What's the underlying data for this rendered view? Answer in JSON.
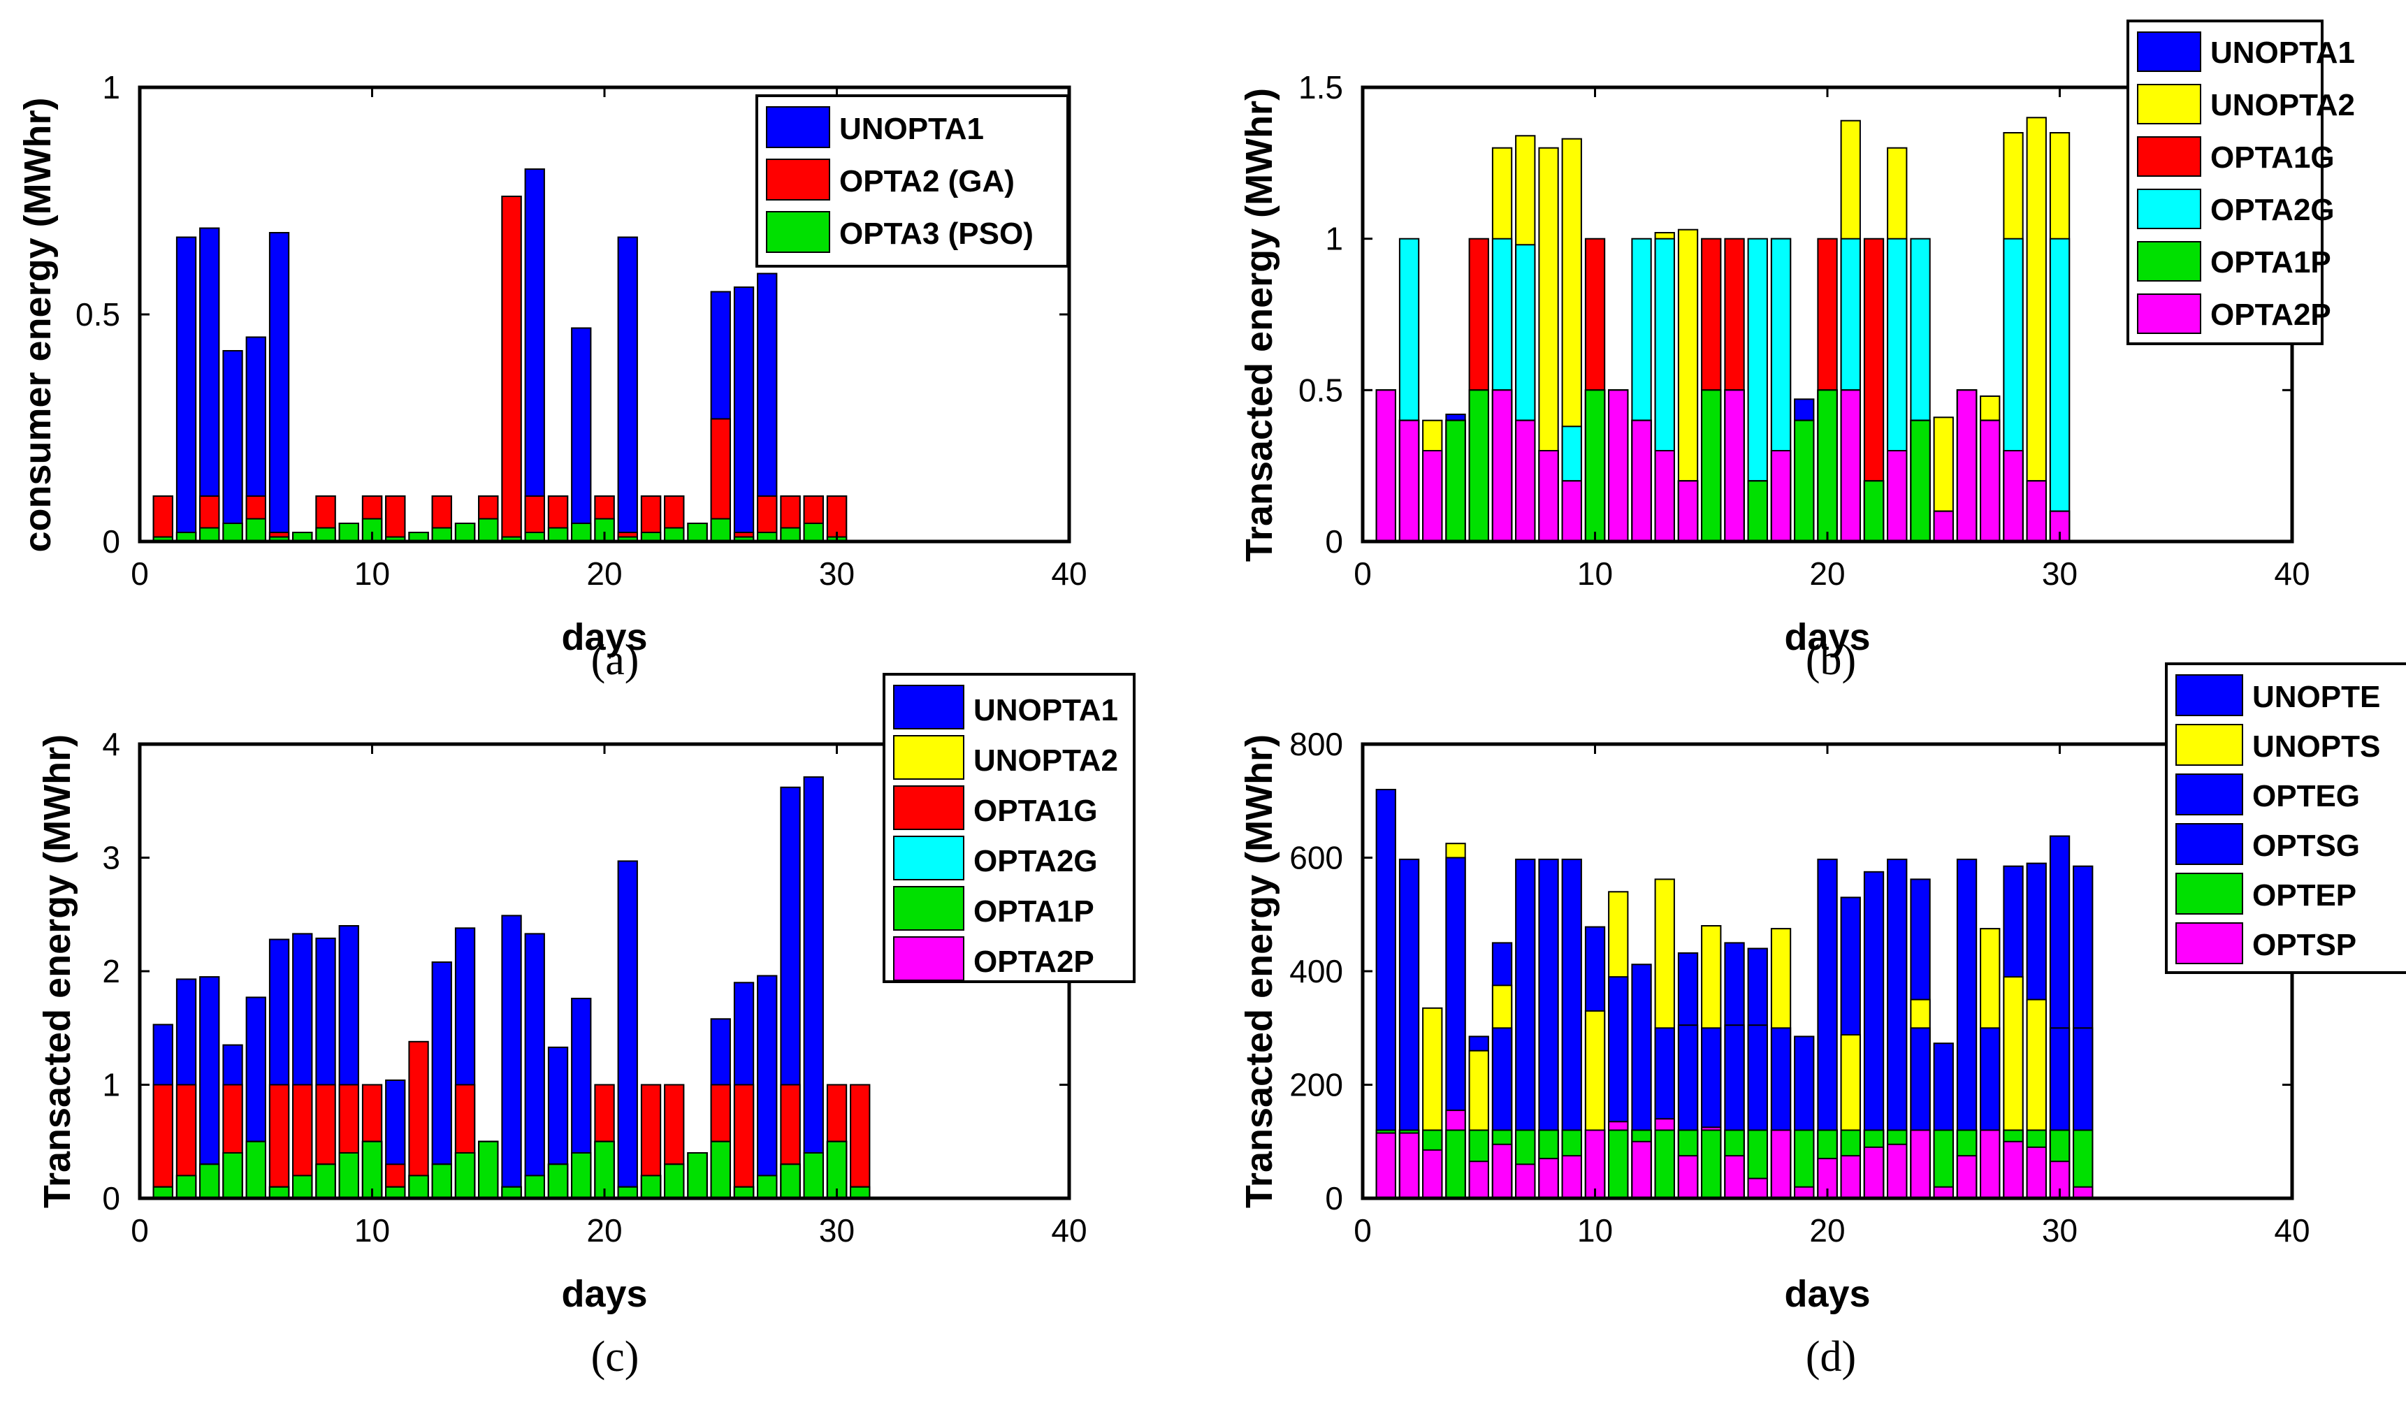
{
  "chart_data": [
    {
      "type": "bar",
      "panel_label": "(a)",
      "title": "",
      "xlabel": "days",
      "ylabel": "consumer energy (MWhr)",
      "xlim": [
        0,
        40
      ],
      "ylim": [
        0,
        1
      ],
      "xticks": [
        "0",
        "10",
        "20",
        "30",
        "40"
      ],
      "yticks": [
        "0",
        "0.5",
        "1"
      ],
      "ytick_values": [
        0,
        0.5,
        1
      ],
      "bar_mode": "overlay",
      "legend_position": "top-right",
      "x": [
        1,
        2,
        3,
        4,
        5,
        6,
        7,
        8,
        9,
        10,
        11,
        12,
        13,
        14,
        15,
        16,
        17,
        18,
        19,
        20,
        21,
        22,
        23,
        24,
        25,
        26,
        27,
        28,
        29,
        30
      ],
      "series": [
        {
          "name": "UNOPTA1",
          "color": "#0000ff",
          "values": [
            0.1,
            0.67,
            0.69,
            0.42,
            0.45,
            0.68,
            0.02,
            0.1,
            0.04,
            0.1,
            0.1,
            0.02,
            0.1,
            0.04,
            0.1,
            0.76,
            0.82,
            0.1,
            0.47,
            0.1,
            0.67,
            0.1,
            0.1,
            0.04,
            0.55,
            0.56,
            0.59,
            0.1,
            0.1,
            0.1
          ]
        },
        {
          "name": "OPTA2 (GA)",
          "color": "#ff0000",
          "values": [
            0.1,
            0.02,
            0.1,
            0.04,
            0.1,
            0.02,
            0.02,
            0.1,
            0.04,
            0.1,
            0.1,
            0.02,
            0.1,
            0.04,
            0.1,
            0.76,
            0.1,
            0.1,
            0.04,
            0.1,
            0.02,
            0.1,
            0.1,
            0.04,
            0.27,
            0.02,
            0.1,
            0.1,
            0.1,
            0.1
          ]
        },
        {
          "name": "OPTA3 (PSO)",
          "color": "#00e000",
          "values": [
            0.01,
            0.02,
            0.03,
            0.04,
            0.05,
            0.01,
            0.02,
            0.03,
            0.04,
            0.05,
            0.01,
            0.02,
            0.03,
            0.04,
            0.05,
            0.01,
            0.02,
            0.03,
            0.04,
            0.05,
            0.01,
            0.02,
            0.03,
            0.04,
            0.05,
            0.01,
            0.02,
            0.03,
            0.04,
            0.01
          ]
        }
      ]
    },
    {
      "type": "bar",
      "panel_label": "(b)",
      "title": "",
      "xlabel": "days",
      "ylabel": "Transacted energy (MWhr)",
      "xlim": [
        0,
        40
      ],
      "ylim": [
        0,
        1.5
      ],
      "xticks": [
        "0",
        "10",
        "20",
        "30",
        "40"
      ],
      "yticks": [
        "0",
        "0.5",
        "1",
        "1.5"
      ],
      "ytick_values": [
        0,
        0.5,
        1,
        1.5
      ],
      "bar_mode": "overlay",
      "legend_position": "top-right",
      "x": [
        1,
        2,
        3,
        4,
        5,
        6,
        7,
        8,
        9,
        10,
        11,
        12,
        13,
        14,
        15,
        16,
        17,
        18,
        19,
        20,
        21,
        22,
        23,
        24,
        25,
        26,
        27,
        28,
        29,
        30
      ],
      "series": [
        {
          "name": "UNOPTA1",
          "color": "#0000ff",
          "values": [
            0.5,
            0.4,
            0.3,
            0.42,
            0.5,
            0.5,
            0.4,
            0.3,
            0.2,
            0.5,
            0.5,
            0.4,
            0.3,
            0.2,
            0.5,
            0.5,
            0.2,
            0.3,
            0.47,
            0.5,
            0.5,
            0.2,
            0.3,
            0.4,
            0.1,
            0.5,
            0.4,
            0.3,
            0.2,
            0.1
          ]
        },
        {
          "name": "UNOPTA2",
          "color": "#ffff00",
          "values": [
            0.5,
            0.4,
            0.4,
            0.4,
            0.5,
            1.3,
            1.34,
            1.3,
            1.33,
            0.5,
            0.5,
            0.4,
            1.02,
            1.03,
            0.5,
            0.5,
            0.2,
            0.3,
            0.4,
            0.5,
            1.39,
            0.2,
            1.3,
            0.4,
            0.41,
            0.5,
            0.48,
            1.35,
            1.4,
            1.35
          ]
        },
        {
          "name": "OPTA1G",
          "color": "#ff0000",
          "values": [
            0.5,
            0.4,
            0.3,
            0.4,
            1.0,
            0.5,
            0.4,
            0.3,
            0.2,
            1.0,
            0.5,
            0.4,
            0.3,
            0.2,
            1.0,
            1.0,
            0.2,
            1.0,
            0.4,
            1.0,
            0.5,
            1.0,
            0.3,
            0.4,
            0.1,
            0.5,
            0.4,
            0.3,
            0.2,
            0.1
          ]
        },
        {
          "name": "OPTA2G",
          "color": "#00ffff",
          "values": [
            0.5,
            1.0,
            0.3,
            0.4,
            0.5,
            1.0,
            0.98,
            0.3,
            0.38,
            0.5,
            0.5,
            1.0,
            1.0,
            0.2,
            0.5,
            0.5,
            1.0,
            1.0,
            0.4,
            0.5,
            1.0,
            0.2,
            1.0,
            1.0,
            0.1,
            0.5,
            0.4,
            1.0,
            0.2,
            1.0
          ]
        },
        {
          "name": "OPTA1P",
          "color": "#00e000",
          "values": [
            0.5,
            0.4,
            0.3,
            0.4,
            0.5,
            0.5,
            0.4,
            0.3,
            0.2,
            0.5,
            0.5,
            0.4,
            0.3,
            0.2,
            0.5,
            0.5,
            0.2,
            0.3,
            0.4,
            0.5,
            0.5,
            0.2,
            0.3,
            0.4,
            0.1,
            0.5,
            0.4,
            0.3,
            0.2,
            0.1
          ]
        },
        {
          "name": "OPTA2P",
          "color": "#ff00ff",
          "values": [
            0.5,
            0.4,
            0.3,
            0.0,
            0.0,
            0.5,
            0.4,
            0.3,
            0.2,
            0.0,
            0.5,
            0.4,
            0.3,
            0.2,
            0.0,
            0.5,
            0.0,
            0.3,
            0.0,
            0.0,
            0.5,
            0.0,
            0.3,
            0.0,
            0.1,
            0.5,
            0.4,
            0.3,
            0.2,
            0.1
          ]
        }
      ]
    },
    {
      "type": "bar",
      "panel_label": "(c)",
      "title": "",
      "xlabel": "days",
      "ylabel": "Transacted energy (MWhr)",
      "xlim": [
        0,
        40
      ],
      "ylim": [
        0,
        4
      ],
      "xticks": [
        "0",
        "10",
        "20",
        "30",
        "40"
      ],
      "yticks": [
        "0",
        "1",
        "2",
        "3",
        "4"
      ],
      "ytick_values": [
        0,
        1,
        2,
        3,
        4
      ],
      "bar_mode": "overlay",
      "legend_position": "top-right",
      "x": [
        1,
        2,
        3,
        4,
        5,
        6,
        7,
        8,
        9,
        10,
        11,
        12,
        13,
        14,
        15,
        16,
        17,
        18,
        19,
        20,
        21,
        22,
        23,
        24,
        25,
        26,
        27,
        28,
        29,
        30,
        31
      ],
      "series": [
        {
          "name": "UNOPTA1",
          "color": "#0000ff",
          "values": [
            1.53,
            1.93,
            1.95,
            1.35,
            1.77,
            2.28,
            2.33,
            2.29,
            2.4,
            0.5,
            1.04,
            0.2,
            2.08,
            2.38,
            0.5,
            2.49,
            2.33,
            1.33,
            1.76,
            0.5,
            2.97,
            0.2,
            0.3,
            0.4,
            1.58,
            1.9,
            1.96,
            3.62,
            3.71,
            0.5,
            0.1
          ]
        },
        {
          "name": "UNOPTA2",
          "color": "#ffff00",
          "values": [
            0.1,
            0.2,
            0.3,
            0.4,
            0.5,
            0.1,
            0.2,
            0.3,
            0.4,
            0.5,
            0.1,
            0.2,
            0.3,
            0.4,
            0.5,
            0.1,
            0.2,
            0.3,
            0.4,
            0.5,
            0.1,
            0.2,
            0.3,
            0.4,
            0.5,
            0.1,
            0.2,
            0.3,
            0.4,
            0.5,
            0.1
          ]
        },
        {
          "name": "OPTA1G",
          "color": "#ff0000",
          "values": [
            1.0,
            1.0,
            0.3,
            1.0,
            0.5,
            1.0,
            1.0,
            1.0,
            1.0,
            1.0,
            0.3,
            1.38,
            0.3,
            1.0,
            0.5,
            0.1,
            0.2,
            0.3,
            0.4,
            1.0,
            0.1,
            1.0,
            1.0,
            0.4,
            1.0,
            1.0,
            0.2,
            1.0,
            0.4,
            1.0,
            1.0
          ]
        },
        {
          "name": "OPTA2G",
          "color": "#00ffff",
          "values": [
            0.1,
            0.2,
            0.3,
            0.4,
            0.5,
            0.1,
            0.2,
            0.3,
            0.4,
            0.5,
            0.1,
            0.2,
            0.3,
            0.4,
            0.5,
            0.1,
            0.2,
            0.3,
            0.4,
            0.5,
            0.1,
            0.2,
            0.3,
            0.4,
            0.5,
            0.1,
            0.2,
            0.3,
            0.4,
            0.5,
            0.1
          ]
        },
        {
          "name": "OPTA1P",
          "color": "#00e000",
          "values": [
            0.1,
            0.2,
            0.3,
            0.4,
            0.5,
            0.1,
            0.2,
            0.3,
            0.4,
            0.5,
            0.1,
            0.2,
            0.3,
            0.4,
            0.5,
            0.1,
            0.2,
            0.3,
            0.4,
            0.5,
            0.1,
            0.2,
            0.3,
            0.4,
            0.5,
            0.1,
            0.2,
            0.3,
            0.4,
            0.5,
            0.1
          ]
        },
        {
          "name": "OPTA2P",
          "color": "#ff00ff",
          "values": [
            0,
            0,
            0,
            0,
            0,
            0,
            0,
            0,
            0,
            0,
            0,
            0,
            0,
            0,
            0,
            0,
            0,
            0,
            0,
            0,
            0,
            0,
            0,
            0,
            0,
            0,
            0,
            0,
            0,
            0,
            0
          ]
        }
      ]
    },
    {
      "type": "bar",
      "panel_label": "(d)",
      "title": "",
      "xlabel": "days",
      "ylabel": "Transacted energy (MWhr)",
      "xlim": [
        0,
        40
      ],
      "ylim": [
        0,
        800
      ],
      "xticks": [
        "0",
        "10",
        "20",
        "30",
        "40"
      ],
      "yticks": [
        "0",
        "200",
        "400",
        "600",
        "800"
      ],
      "ytick_values": [
        0,
        200,
        400,
        600,
        800
      ],
      "bar_mode": "overlay",
      "legend_position": "top-right",
      "x": [
        1,
        2,
        3,
        4,
        5,
        6,
        7,
        8,
        9,
        10,
        11,
        12,
        13,
        14,
        15,
        16,
        17,
        18,
        19,
        20,
        21,
        22,
        23,
        24,
        25,
        26,
        27,
        28,
        29,
        30,
        31
      ],
      "series": [
        {
          "name": "UNOPTE",
          "color": "#0000ff",
          "values": [
            720,
            597,
            120,
            600,
            285,
            450,
            597,
            597,
            597,
            478,
            390,
            412,
            300,
            432,
            300,
            450,
            440,
            300,
            285,
            597,
            530,
            575,
            597,
            562,
            273,
            597,
            300,
            585,
            590,
            638,
            585
          ]
        },
        {
          "name": "UNOPTS",
          "color": "#ffff00",
          "values": [
            120,
            120,
            335,
            625,
            260,
            375,
            120,
            120,
            120,
            330,
            540,
            120,
            562,
            120,
            480,
            120,
            120,
            475,
            120,
            120,
            288,
            120,
            120,
            350,
            120,
            120,
            475,
            390,
            350,
            120,
            120
          ]
        },
        {
          "name": "OPTEG",
          "color": "#0000ff",
          "values": [
            120,
            120,
            120,
            120,
            120,
            300,
            120,
            120,
            120,
            120,
            120,
            120,
            120,
            305,
            120,
            305,
            305,
            120,
            120,
            120,
            120,
            120,
            120,
            300,
            120,
            120,
            120,
            120,
            120,
            300,
            300
          ]
        },
        {
          "name": "OPTSG",
          "color": "#0000ff",
          "values": [
            120,
            120,
            120,
            120,
            120,
            120,
            120,
            120,
            120,
            120,
            120,
            120,
            120,
            120,
            120,
            120,
            120,
            120,
            120,
            120,
            120,
            120,
            120,
            120,
            120,
            120,
            120,
            120,
            120,
            120,
            120
          ]
        },
        {
          "name": "OPTEP",
          "color": "#00e000",
          "values": [
            120,
            120,
            120,
            120,
            120,
            120,
            120,
            120,
            120,
            120,
            120,
            120,
            120,
            120,
            120,
            120,
            120,
            120,
            120,
            120,
            120,
            120,
            120,
            120,
            120,
            120,
            120,
            120,
            120,
            120,
            120
          ]
        },
        {
          "name": "OPTSP",
          "color": "#ff00ff",
          "values": [
            115,
            115,
            85,
            155,
            65,
            95,
            60,
            70,
            75,
            120,
            135,
            100,
            140,
            75,
            125,
            75,
            35,
            120,
            20,
            70,
            75,
            90,
            95,
            120,
            20,
            75,
            120,
            100,
            90,
            65,
            20
          ]
        }
      ]
    }
  ]
}
